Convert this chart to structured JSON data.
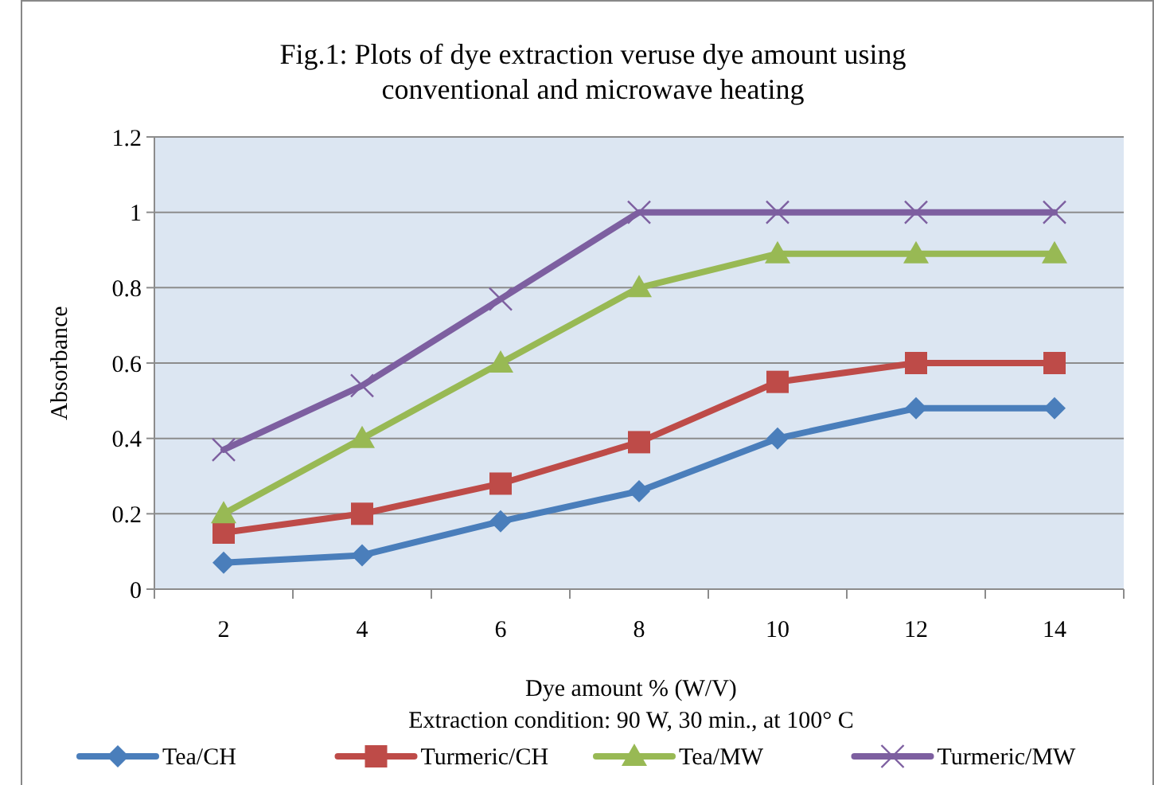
{
  "chart_data": {
    "type": "line",
    "title": "Fig.1: Plots of dye extraction veruse dye amount using conventional and microwave heating",
    "xlabel": "Dye amount % (W/V)",
    "ylabel": "Absorbance",
    "annotations": [
      "Extraction condition:  90 W, 30 min., at 100° C"
    ],
    "categories": [
      "2",
      "4",
      "6",
      "8",
      "10",
      "12",
      "14"
    ],
    "series": [
      {
        "name": "Tea/CH",
        "color": "#4a7ebb",
        "marker": "diamond",
        "values": [
          0.07,
          0.09,
          0.18,
          0.26,
          0.4,
          0.48,
          0.48
        ]
      },
      {
        "name": "Turmeric/CH",
        "color": "#be4b48",
        "marker": "square",
        "values": [
          0.15,
          0.2,
          0.28,
          0.39,
          0.55,
          0.6,
          0.6
        ]
      },
      {
        "name": "Tea/MW",
        "color": "#98b954",
        "marker": "triangle",
        "values": [
          0.2,
          0.4,
          0.6,
          0.8,
          0.89,
          0.89,
          0.89
        ]
      },
      {
        "name": "Turmeric/MW",
        "color": "#7d5fa0",
        "marker": "cross",
        "values": [
          0.37,
          0.54,
          0.77,
          1.0,
          1.0,
          1.0,
          1.0
        ]
      }
    ],
    "ylim": [
      0,
      1.2
    ],
    "yticks": [
      0,
      0.2,
      0.4,
      0.6,
      0.8,
      1,
      1.2
    ],
    "grid": "y",
    "legend": "bottom"
  }
}
